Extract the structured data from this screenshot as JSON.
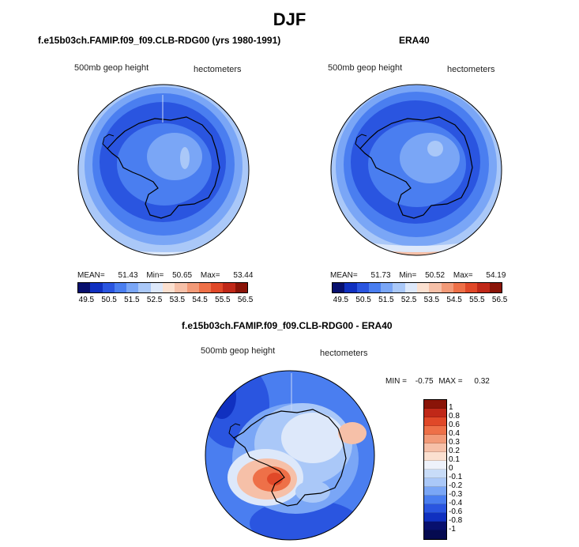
{
  "main_title": "DJF",
  "panels": [
    {
      "title": "f.e15b03ch.FAMIP.f09_f09.CLB-RDG00 (yrs 1980-1991)",
      "left_label": "500mb geop height",
      "right_label": "hectometers",
      "stats": {
        "mean_label": "MEAN=",
        "mean": "51.43",
        "min_label": "Min=",
        "min": "50.65",
        "max_label": "Max=",
        "max": "53.44"
      }
    },
    {
      "title": "ERA40",
      "left_label": "500mb geop height",
      "right_label": "hectometers",
      "stats": {
        "mean_label": "MEAN=",
        "mean": "51.73",
        "min_label": "Min=",
        "min": "50.52",
        "max_label": "Max=",
        "max": "54.19"
      }
    },
    {
      "title": "f.e15b03ch.FAMIP.f09_f09.CLB-RDG00 - ERA40",
      "left_label": "500mb geop height",
      "right_label": "hectometers",
      "stats": {
        "min_label": "MIN =",
        "min": "-0.75",
        "max_label": "MAX =",
        "max": "0.32"
      }
    }
  ],
  "colorbar_top": {
    "labels": [
      "49.5",
      "50.5",
      "51.5",
      "52.5",
      "53.5",
      "54.5",
      "55.5",
      "56.5"
    ],
    "colors": [
      "#08106e",
      "#1030c0",
      "#2a55e0",
      "#4a7ef0",
      "#7aa6f6",
      "#aac8f8",
      "#dde8fa",
      "#fbe0d0",
      "#f6c0a8",
      "#f29a78",
      "#ee7048",
      "#e04828",
      "#c02818",
      "#8a1408"
    ]
  },
  "colorbar_diff": {
    "labels": [
      "1",
      "0.8",
      "0.6",
      "0.4",
      "0.3",
      "0.2",
      "0.1",
      "0",
      "-0.1",
      "-0.2",
      "-0.3",
      "-0.4",
      "-0.6",
      "-0.8",
      "-1"
    ],
    "colors": [
      "#8a1408",
      "#c02818",
      "#e04828",
      "#ee7048",
      "#f29a78",
      "#f6c0a8",
      "#fbe0d0",
      "#eef2fb",
      "#c8dcf8",
      "#aac8f8",
      "#7aa6f6",
      "#4a7ef0",
      "#2a55e0",
      "#1030c0",
      "#08106e",
      "#050a50"
    ]
  },
  "map_colors": {
    "outer_blue": "#2a55e0",
    "mid_blue": "#4a7ef0",
    "light_blue": "#7aa6f6",
    "pale_blue": "#aac8f8",
    "pale": "#dde8fa",
    "peach": "#f6c0a8",
    "orange": "#ee7048"
  }
}
